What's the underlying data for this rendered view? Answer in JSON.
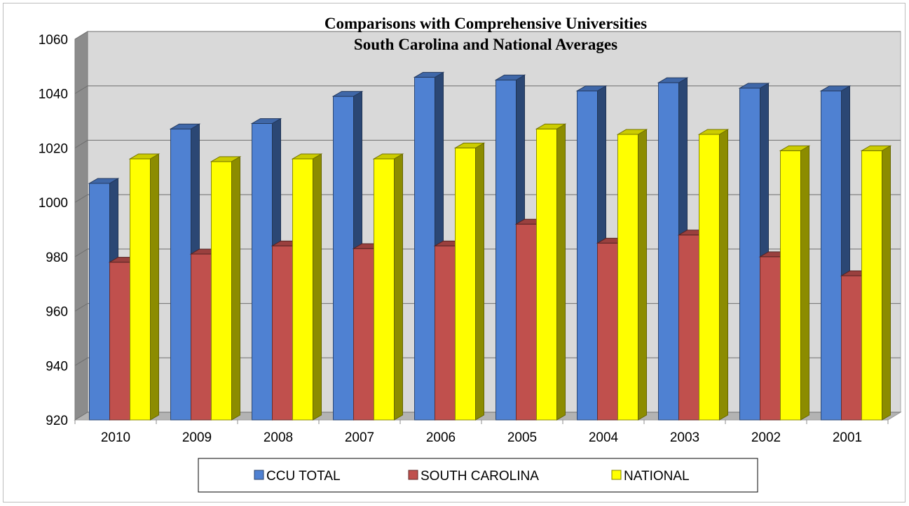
{
  "chart_data": {
    "type": "bar",
    "title": "Comparisons with Comprehensive Universities",
    "subtitle": "South Carolina and National Averages",
    "xlabel": "",
    "ylabel": "",
    "categories": [
      "2010",
      "2009",
      "2008",
      "2007",
      "2006",
      "2005",
      "2004",
      "2003",
      "2002",
      "2001"
    ],
    "series": [
      {
        "name": "CCU TOTAL",
        "color": "#4f81d2",
        "values": [
          1007,
          1027,
          1029,
          1039,
          1046,
          1045,
          1041,
          1044,
          1042,
          1041
        ]
      },
      {
        "name": "SOUTH CAROLINA",
        "color": "#c0504d",
        "values": [
          978,
          981,
          984,
          983,
          984,
          992,
          985,
          988,
          980,
          973
        ]
      },
      {
        "name": "NATIONAL",
        "color": "#ffff00",
        "values": [
          1016,
          1015,
          1016,
          1016,
          1020,
          1027,
          1025,
          1025,
          1019,
          1019
        ]
      }
    ],
    "ylim": [
      920,
      1060
    ],
    "yticks": [
      920,
      940,
      960,
      980,
      1000,
      1020,
      1040,
      1060
    ],
    "grid": true,
    "legend": "bottom-center",
    "three_d": true
  }
}
